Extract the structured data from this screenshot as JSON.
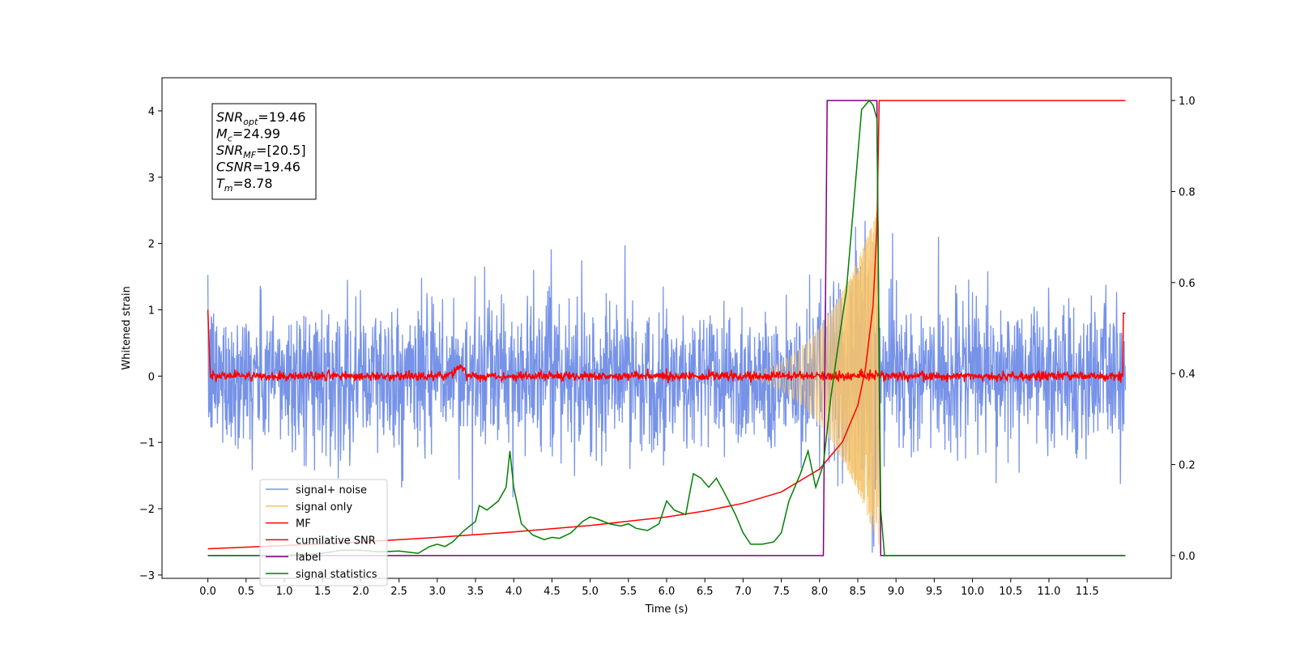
{
  "chart_data": {
    "type": "line",
    "xlabel": "Time (s)",
    "ylabel_left": "Whitened strain",
    "ylabel_right": "",
    "xlim": [
      -0.6,
      12.6
    ],
    "ylim_left": [
      -3.05,
      4.5
    ],
    "ylim_right": [
      -0.05,
      1.05
    ],
    "x_ticks": [
      "0.0",
      "0.5",
      "1.0",
      "1.5",
      "2.0",
      "2.5",
      "3.0",
      "3.5",
      "4.0",
      "4.5",
      "5.0",
      "5.5",
      "6.0",
      "6.5",
      "7.0",
      "7.5",
      "8.0",
      "8.5",
      "9.0",
      "9.5",
      "10.0",
      "10.5",
      "11.0",
      "11.5"
    ],
    "y_ticks_left": [
      "−3",
      "−2",
      "−1",
      "0",
      "1",
      "2",
      "3",
      "4"
    ],
    "y_ticks_right": [
      "0.0",
      "0.2",
      "0.4",
      "0.6",
      "0.8",
      "1.0"
    ],
    "grid": false,
    "legend_position": "lower-left",
    "info_box": [
      {
        "main": "SNR",
        "sub": "opt",
        "rest": "=19.46"
      },
      {
        "main": "M",
        "sub": "c",
        "rest": "=24.99"
      },
      {
        "main": "SNR",
        "sub": "MF",
        "rest": "=[20.5]"
      },
      {
        "main": "CSNR",
        "sub": "",
        "rest": "=19.46"
      },
      {
        "main": "T",
        "sub": "m",
        "rest": "=8.78"
      }
    ],
    "series": [
      {
        "name": "signal+ noise",
        "color": "#7793e8",
        "axis": "left",
        "description_of_values": "noise band roughly between -1.8 and 1.8 across 0-12 s, spikes up to about 2.2 and down to about -2.3",
        "noise_std": 0.55
      },
      {
        "name": "signal only",
        "color": "#f5c36b",
        "axis": "left",
        "chirp": {
          "start": 6.5,
          "merger": 8.78,
          "peak_amplitude": 2.6
        }
      },
      {
        "name": "MF",
        "color": "#ff0000",
        "axis": "left",
        "description_of_values": "near 0 with small fluctuations, spike to 1.0 at 0.0 and 12.0",
        "bump": {
          "x": 3.3,
          "y": 0.12
        }
      },
      {
        "name": "cumilative SNR",
        "color": "#ff0000",
        "axis": "right",
        "x": [
          0.0,
          1.0,
          2.0,
          3.0,
          4.0,
          5.0,
          6.0,
          6.5,
          7.0,
          7.5,
          8.0,
          8.3,
          8.5,
          8.6,
          8.7,
          8.75,
          8.78,
          8.8,
          12.0
        ],
        "y": [
          0.015,
          0.022,
          0.03,
          0.04,
          0.052,
          0.066,
          0.085,
          0.098,
          0.115,
          0.14,
          0.19,
          0.25,
          0.33,
          0.41,
          0.55,
          0.72,
          1.0,
          1.0,
          1.0
        ]
      },
      {
        "name": "label",
        "color": "#7f007f",
        "axis": "right",
        "x": [
          0.0,
          8.05,
          8.1,
          8.75,
          8.8,
          12.0
        ],
        "y": [
          0.0,
          0.0,
          1.0,
          1.0,
          0.0,
          0.0
        ]
      },
      {
        "name": "signal statistics",
        "color": "#008000",
        "axis": "right",
        "x": [
          0.0,
          0.5,
          1.0,
          1.5,
          1.75,
          2.0,
          2.25,
          2.5,
          2.75,
          2.9,
          3.0,
          3.1,
          3.2,
          3.35,
          3.5,
          3.55,
          3.65,
          3.8,
          3.9,
          3.95,
          4.0,
          4.1,
          4.25,
          4.4,
          4.5,
          4.6,
          4.75,
          4.9,
          5.0,
          5.1,
          5.25,
          5.4,
          5.5,
          5.6,
          5.75,
          5.9,
          6.0,
          6.1,
          6.25,
          6.35,
          6.45,
          6.55,
          6.65,
          6.75,
          6.9,
          7.0,
          7.1,
          7.25,
          7.4,
          7.5,
          7.6,
          7.75,
          7.85,
          7.95,
          8.05,
          8.15,
          8.25,
          8.35,
          8.45,
          8.55,
          8.65,
          8.7,
          8.75,
          8.8,
          8.85,
          12.0
        ],
        "y": [
          0.0,
          0.0,
          0.0,
          0.005,
          0.012,
          0.012,
          0.008,
          0.01,
          0.005,
          0.02,
          0.025,
          0.02,
          0.03,
          0.055,
          0.075,
          0.11,
          0.1,
          0.12,
          0.15,
          0.23,
          0.15,
          0.07,
          0.045,
          0.035,
          0.04,
          0.038,
          0.05,
          0.075,
          0.085,
          0.08,
          0.07,
          0.065,
          0.07,
          0.06,
          0.055,
          0.07,
          0.12,
          0.1,
          0.09,
          0.18,
          0.17,
          0.15,
          0.17,
          0.14,
          0.09,
          0.05,
          0.025,
          0.025,
          0.03,
          0.05,
          0.12,
          0.18,
          0.23,
          0.15,
          0.2,
          0.35,
          0.47,
          0.58,
          0.78,
          0.98,
          1.0,
          0.99,
          0.96,
          0.1,
          0.0,
          0.0
        ]
      }
    ]
  }
}
